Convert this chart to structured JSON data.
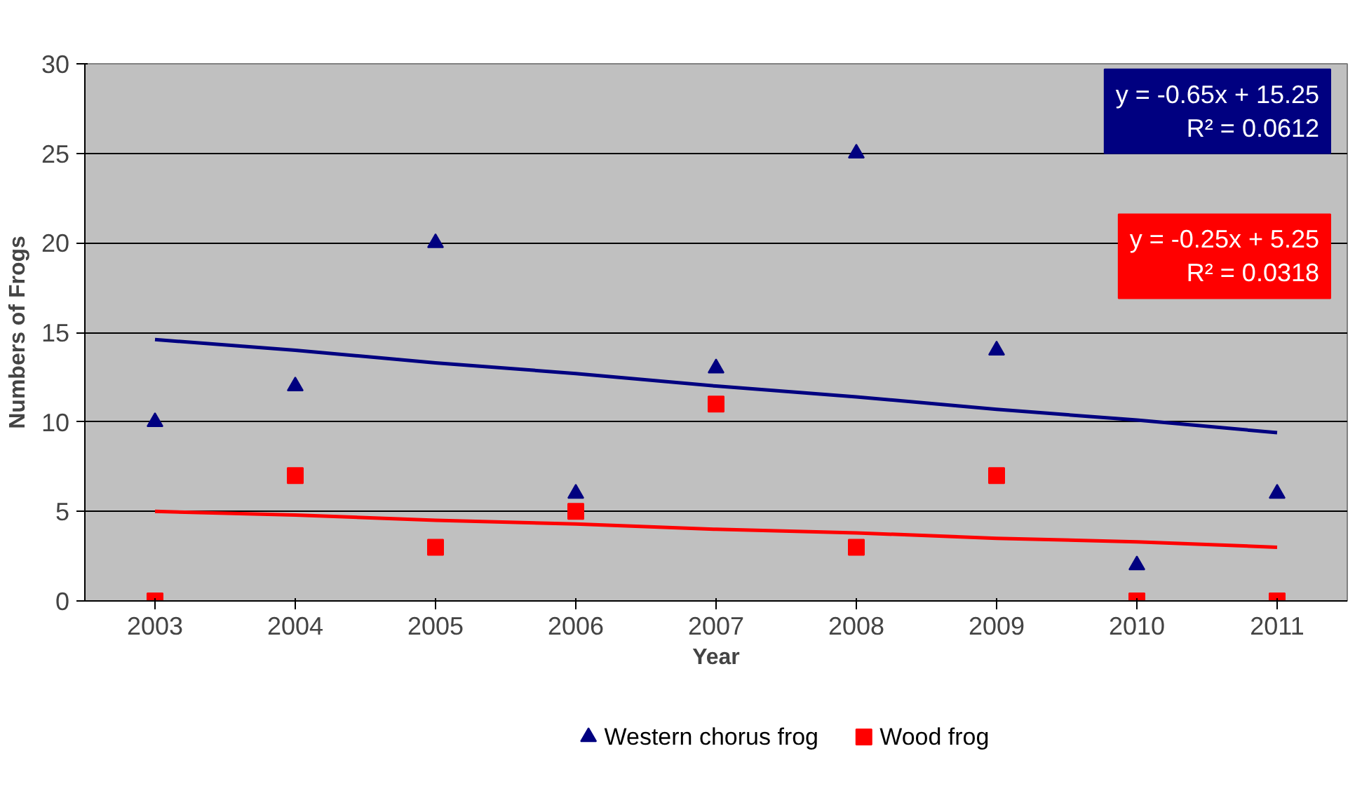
{
  "chart_data": {
    "type": "scatter",
    "xlabel": "Year",
    "ylabel": "Numbers of Frogs",
    "categories": [
      "2003",
      "2004",
      "2005",
      "2006",
      "2007",
      "2008",
      "2009",
      "2010",
      "2011"
    ],
    "series": [
      {
        "name": "Western chorus frog",
        "color": "#000080",
        "marker": "triangle",
        "values": [
          10,
          12,
          20,
          6,
          13,
          25,
          14,
          2,
          6
        ]
      },
      {
        "name": "Wood frog",
        "color": "#ff0000",
        "marker": "square",
        "values": [
          0,
          7,
          3,
          5,
          11,
          3,
          7,
          0,
          0
        ]
      },
      {
        "type": "line",
        "color": "#000080",
        "values": [
          14.6,
          14.0,
          13.3,
          12.7,
          12.0,
          11.4,
          10.7,
          10.1,
          9.4
        ]
      },
      {
        "type": "line",
        "color": "#ff0000",
        "values": [
          5.0,
          4.8,
          4.5,
          4.3,
          4.0,
          3.8,
          3.5,
          3.3,
          3.0
        ]
      }
    ],
    "annotations": [
      "y = -0.65x + 15.25\nR² = 0.0612",
      "y = -0.25x + 5.25\nR² = 0.0318"
    ],
    "ylim": [
      0,
      30
    ],
    "yticks": [
      0,
      5,
      10,
      15,
      20,
      25,
      30
    ],
    "grid": "y",
    "legend": "bottom"
  }
}
